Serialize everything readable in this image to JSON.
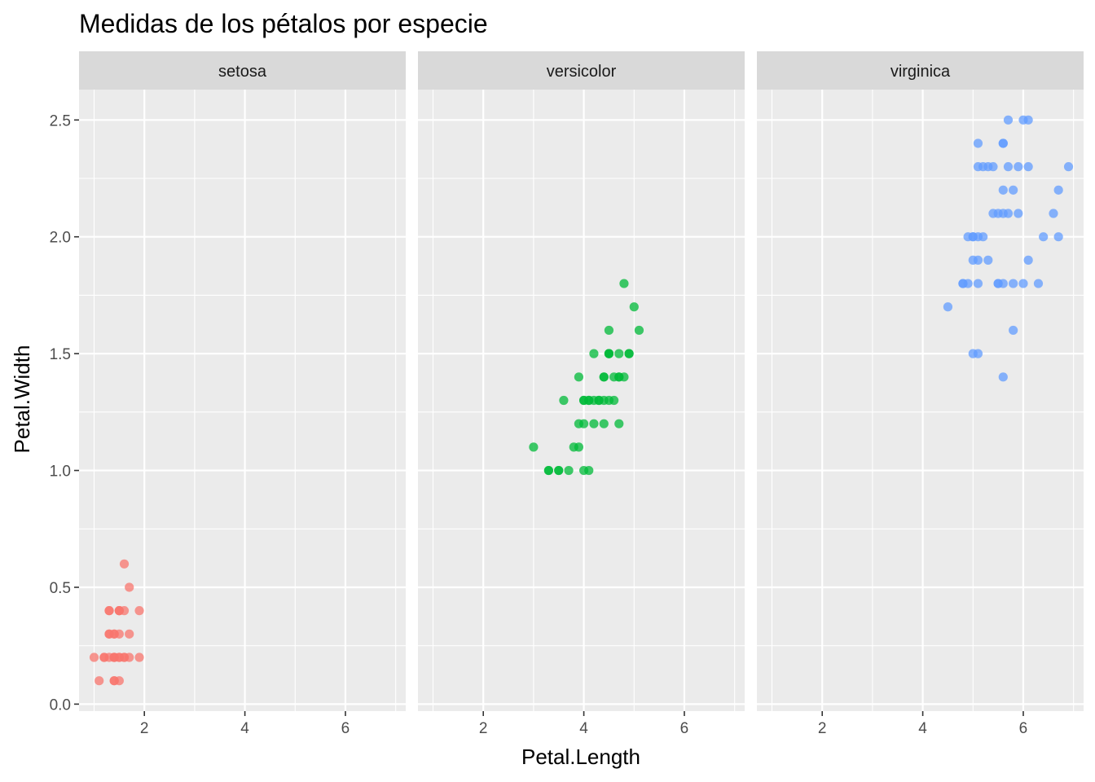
{
  "chart_data": {
    "type": "scatter",
    "title": "Medidas de los pétalos por especie",
    "xlabel": "Petal.Length",
    "ylabel": "Petal.Width",
    "xlim": [
      0.7,
      7.2
    ],
    "ylim": [
      -0.03,
      2.63
    ],
    "x_ticks": [
      2,
      4,
      6
    ],
    "y_ticks": [
      0.0,
      0.5,
      1.0,
      1.5,
      2.0,
      2.5
    ],
    "y_tick_labels": [
      "0.0",
      "0.5",
      "1.0",
      "1.5",
      "2.0",
      "2.5"
    ],
    "grid": true,
    "legend": "none",
    "facets": [
      {
        "name": "setosa",
        "color": "#F8766D",
        "x": [
          1.0,
          1.1,
          1.2,
          1.2,
          1.3,
          1.3,
          1.3,
          1.3,
          1.4,
          1.4,
          1.4,
          1.4,
          1.4,
          1.5,
          1.5,
          1.5,
          1.5,
          1.5,
          1.5,
          1.6,
          1.6,
          1.6,
          1.6,
          1.7,
          1.7,
          1.7,
          1.9,
          1.9,
          1.4,
          1.5,
          1.3,
          1.4
        ],
        "y": [
          0.2,
          0.1,
          0.2,
          0.2,
          0.2,
          0.3,
          0.3,
          0.4,
          0.1,
          0.2,
          0.2,
          0.3,
          0.3,
          0.1,
          0.2,
          0.2,
          0.4,
          0.4,
          0.4,
          0.2,
          0.2,
          0.4,
          0.6,
          0.2,
          0.3,
          0.5,
          0.2,
          0.4,
          0.2,
          0.3,
          0.4,
          0.1
        ]
      },
      {
        "name": "versicolor",
        "color": "#00BA38",
        "x": [
          3.0,
          3.3,
          3.3,
          3.5,
          3.5,
          3.6,
          3.7,
          3.8,
          3.9,
          3.9,
          3.9,
          4.0,
          4.0,
          4.0,
          4.0,
          4.1,
          4.1,
          4.1,
          4.2,
          4.2,
          4.2,
          4.3,
          4.3,
          4.4,
          4.4,
          4.4,
          4.4,
          4.5,
          4.5,
          4.5,
          4.5,
          4.5,
          4.6,
          4.6,
          4.7,
          4.7,
          4.7,
          4.7,
          4.8,
          4.8,
          4.9,
          4.9,
          5.0,
          5.1
        ],
        "y": [
          1.1,
          1.0,
          1.0,
          1.0,
          1.0,
          1.3,
          1.0,
          1.1,
          1.1,
          1.2,
          1.4,
          1.0,
          1.2,
          1.3,
          1.3,
          1.0,
          1.3,
          1.3,
          1.2,
          1.3,
          1.5,
          1.3,
          1.3,
          1.2,
          1.3,
          1.4,
          1.4,
          1.3,
          1.5,
          1.5,
          1.5,
          1.6,
          1.3,
          1.4,
          1.2,
          1.4,
          1.4,
          1.5,
          1.4,
          1.8,
          1.5,
          1.5,
          1.7,
          1.6
        ]
      },
      {
        "name": "virginica",
        "color": "#619CFF",
        "x": [
          4.5,
          4.8,
          4.8,
          4.9,
          4.9,
          5.0,
          5.0,
          5.0,
          5.0,
          5.1,
          5.1,
          5.1,
          5.1,
          5.1,
          5.1,
          5.2,
          5.2,
          5.3,
          5.3,
          5.4,
          5.4,
          5.5,
          5.5,
          5.5,
          5.6,
          5.6,
          5.6,
          5.6,
          5.6,
          5.6,
          5.7,
          5.7,
          5.7,
          5.8,
          5.8,
          5.8,
          5.9,
          5.9,
          6.0,
          6.0,
          6.1,
          6.1,
          6.1,
          6.3,
          6.4,
          6.6,
          6.7,
          6.7,
          6.9
        ],
        "y": [
          1.7,
          1.8,
          1.8,
          1.8,
          2.0,
          1.5,
          1.9,
          2.0,
          2.0,
          1.5,
          1.8,
          1.9,
          2.0,
          2.3,
          2.4,
          2.0,
          2.3,
          1.9,
          2.3,
          2.1,
          2.3,
          1.8,
          2.1,
          1.8,
          1.4,
          1.8,
          2.1,
          2.2,
          2.4,
          2.4,
          2.1,
          2.3,
          2.5,
          1.6,
          1.8,
          2.2,
          2.1,
          2.3,
          1.8,
          2.5,
          1.9,
          2.3,
          2.5,
          1.8,
          2.0,
          2.1,
          2.0,
          2.2,
          2.3
        ]
      }
    ]
  }
}
